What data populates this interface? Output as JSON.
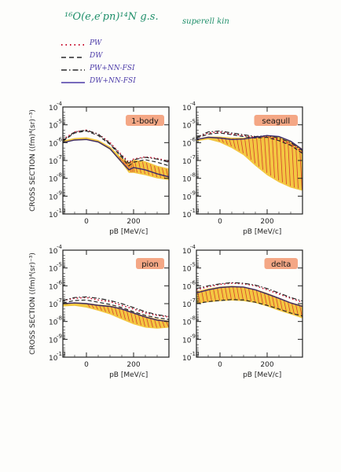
{
  "header": {
    "title_html": "¹⁶O(e,e′pn)¹⁴N g.s.",
    "note": "superell kin"
  },
  "legend": [
    {
      "label": "PW",
      "style": "dotted",
      "color": "#c8102e"
    },
    {
      "label": "DW",
      "style": "dashed",
      "color": "#2a2a2a"
    },
    {
      "label": "PW+NN-FSI",
      "style": "dashdot",
      "color": "#2a2a2a"
    },
    {
      "label": "DW+NN-FSI",
      "style": "solid",
      "color": "#4b3aa8"
    }
  ],
  "colors": {
    "band": "#f2c12e",
    "hatch": "#d6402b",
    "frame": "#222222",
    "label_bg": "#f08a5d"
  },
  "chart_data": [
    {
      "type": "line",
      "panel": "1-body",
      "xlabel": "pB [MeV/c]",
      "ylabel": "CROSS SECTION ((fm)⁴(sr)⁻³)",
      "xlim": [
        -100,
        350
      ],
      "xticks": [
        0,
        200
      ],
      "ylim_log10": [
        -10,
        -4
      ],
      "yscale": "log",
      "yticklabels": [
        "10",
        "10",
        "10",
        "10",
        "10",
        "10",
        "10"
      ],
      "ytickexps": [
        "-4",
        "-5",
        "-6",
        "-7",
        "-8",
        "-9",
        "-10"
      ],
      "x": [
        -100,
        -50,
        0,
        50,
        100,
        150,
        180,
        200,
        250,
        300,
        350
      ],
      "series": [
        {
          "name": "PW",
          "values": [
            1.5e-06,
            4e-06,
            5e-06,
            3e-06,
            1e-06,
            2e-07,
            8e-08,
            1.2e-07,
            1.6e-07,
            1.3e-07,
            9e-08
          ]
        },
        {
          "name": "DW",
          "values": [
            1.2e-06,
            3.5e-06,
            4.5e-06,
            2.5e-06,
            8e-07,
            1.5e-07,
            5e-08,
            8e-08,
            1.1e-07,
            8e-08,
            5e-08
          ]
        },
        {
          "name": "PW+NN-FSI",
          "values": [
            1.3e-06,
            4e-06,
            5e-06,
            3e-06,
            9e-07,
            1.8e-07,
            7e-08,
            1.1e-07,
            1.5e-07,
            1.2e-07,
            8e-08
          ]
        },
        {
          "name": "DW+NN-FSI",
          "values": [
            1e-06,
            1.4e-06,
            1.5e-06,
            1.1e-06,
            4.5e-07,
            8e-08,
            3e-08,
            4e-08,
            3e-08,
            1.8e-08,
            1.2e-08
          ]
        }
      ],
      "band_upper": [
        1.3e-06,
        1.8e-06,
        2e-06,
        1.4e-06,
        6e-07,
        1.4e-07,
        8e-08,
        1.1e-07,
        9e-08,
        5e-08,
        3.5e-08
      ],
      "band_lower": [
        1e-06,
        1.3e-06,
        1.4e-06,
        1e-06,
        4e-07,
        7e-08,
        2e-08,
        2e-08,
        1.5e-08,
        1e-08,
        8e-09
      ]
    },
    {
      "type": "line",
      "panel": "seagull",
      "xlabel": "pB [MeV/c]",
      "ylabel": "",
      "xlim": [
        -100,
        350
      ],
      "xticks": [
        0,
        200
      ],
      "ylim_log10": [
        -10,
        -4
      ],
      "yscale": "log",
      "yticklabels": [
        "10",
        "10",
        "10",
        "10",
        "10",
        "10",
        "10"
      ],
      "ytickexps": [
        "-4",
        "-5",
        "-6",
        "-7",
        "-8",
        "-9",
        "-10"
      ],
      "x": [
        -100,
        -50,
        0,
        50,
        100,
        150,
        200,
        250,
        300,
        350
      ],
      "series": [
        {
          "name": "PW",
          "values": [
            2e-06,
            3.5e-06,
            4e-06,
            3e-06,
            2.5e-06,
            2e-06,
            2.2e-06,
            1.5e-06,
            8e-07,
            3e-07
          ]
        },
        {
          "name": "DW",
          "values": [
            1.8e-06,
            3e-06,
            3.5e-06,
            2.8e-06,
            2.2e-06,
            1.8e-06,
            2e-06,
            1.3e-06,
            7e-07,
            2.5e-07
          ]
        },
        {
          "name": "PW+NN-FSI",
          "values": [
            2e-06,
            4e-06,
            4.5e-06,
            3.5e-06,
            2.8e-06,
            2.2e-06,
            2.5e-06,
            1.8e-06,
            1e-06,
            3.5e-07
          ]
        },
        {
          "name": "DW+NN-FSI",
          "values": [
            1.5e-06,
            2e-06,
            1.8e-06,
            1.5e-06,
            1.6e-06,
            2e-06,
            2.5e-06,
            2.2e-06,
            1.2e-06,
            4e-07
          ]
        }
      ],
      "band_upper": [
        1.6e-06,
        2.2e-06,
        2.2e-06,
        1.9e-06,
        1.9e-06,
        2.2e-06,
        2.6e-06,
        2.2e-06,
        1.3e-06,
        4.5e-07
      ],
      "band_lower": [
        1.2e-06,
        1.5e-06,
        1e-06,
        5e-07,
        2e-07,
        5e-08,
        1.5e-08,
        6e-09,
        3e-09,
        2e-09
      ]
    },
    {
      "type": "line",
      "panel": "pion",
      "xlabel": "pB [MeV/c]",
      "ylabel": "CROSS SECTION ((fm)⁴(sr)⁻³)",
      "xlim": [
        -100,
        350
      ],
      "xticks": [
        0,
        200
      ],
      "ylim_log10": [
        -10,
        -4
      ],
      "yscale": "log",
      "yticklabels": [
        "10",
        "10",
        "10",
        "10",
        "10",
        "10",
        "10"
      ],
      "ytickexps": [
        "-4",
        "-5",
        "-6",
        "-7",
        "-8",
        "-9",
        "-10"
      ],
      "x": [
        -100,
        -50,
        0,
        50,
        100,
        150,
        200,
        250,
        300,
        350
      ],
      "series": [
        {
          "name": "PW",
          "values": [
            1.5e-07,
            2e-07,
            2.2e-07,
            1.6e-07,
            1.3e-07,
            8e-08,
            5e-08,
            3e-08,
            2.2e-08,
            1.8e-08
          ]
        },
        {
          "name": "DW",
          "values": [
            1.1e-07,
            1.5e-07,
            1.6e-07,
            1.2e-07,
            9e-08,
            6e-08,
            3.5e-08,
            2.2e-08,
            1.6e-08,
            1.3e-08
          ]
        },
        {
          "name": "PW+NN-FSI",
          "values": [
            1.5e-07,
            2.2e-07,
            2.4e-07,
            2e-07,
            1.5e-07,
            1e-07,
            6e-08,
            3.5e-08,
            2.4e-08,
            1.9e-08
          ]
        },
        {
          "name": "DW+NN-FSI",
          "values": [
            1e-07,
            1.1e-07,
            1e-07,
            8e-08,
            7e-08,
            5e-08,
            3e-08,
            1.8e-08,
            1.2e-08,
            1e-08
          ]
        }
      ],
      "band_upper": [
        1e-07,
        1.2e-07,
        1.1e-07,
        9e-08,
        8e-08,
        5.5e-08,
        3.3e-08,
        2e-08,
        1.4e-08,
        1.1e-08
      ],
      "band_lower": [
        7e-08,
        7.5e-08,
        6e-08,
        4e-08,
        2.5e-08,
        1.3e-08,
        7e-09,
        4.5e-09,
        4e-09,
        4.5e-09
      ]
    },
    {
      "type": "line",
      "panel": "delta",
      "xlabel": "pB [MeV/c]",
      "ylabel": "",
      "xlim": [
        -100,
        350
      ],
      "xticks": [
        0,
        200
      ],
      "ylim_log10": [
        -10,
        -4
      ],
      "yscale": "log",
      "yticklabels": [
        "10",
        "10",
        "10",
        "10",
        "10",
        "10",
        "10"
      ],
      "ytickexps": [
        "-4",
        "-5",
        "-6",
        "-7",
        "-8",
        "-9",
        "-10"
      ],
      "x": [
        -100,
        -50,
        0,
        50,
        100,
        150,
        200,
        250,
        300,
        350
      ],
      "series": [
        {
          "name": "PW",
          "values": [
            6e-07,
            9e-07,
            1.2e-06,
            1.4e-06,
            1.3e-06,
            1e-06,
            6e-07,
            3.5e-07,
            2e-07,
            1.2e-07
          ]
        },
        {
          "name": "DW",
          "values": [
            1e-07,
            1.3e-07,
            1.5e-07,
            1.7e-07,
            1.6e-07,
            1.2e-07,
            8e-08,
            5e-08,
            3e-08,
            2e-08
          ]
        },
        {
          "name": "PW+NN-FSI",
          "values": [
            7e-07,
            1e-06,
            1.3e-06,
            1.5e-06,
            1.4e-06,
            1.1e-06,
            7e-07,
            4e-07,
            2.2e-07,
            1.4e-07
          ]
        },
        {
          "name": "DW+NN-FSI",
          "values": [
            4e-07,
            6e-07,
            8e-07,
            9e-07,
            8.5e-07,
            6e-07,
            3.5e-07,
            2e-07,
            1.1e-07,
            7e-08
          ]
        }
      ],
      "band_upper": [
        5e-07,
        7e-07,
        9e-07,
        1e-06,
        9e-07,
        6.5e-07,
        4e-07,
        2.2e-07,
        1.2e-07,
        8e-08
      ],
      "band_lower": [
        1e-07,
        1.2e-07,
        1.4e-07,
        1.5e-07,
        1.4e-07,
        1.1e-07,
        7e-08,
        4e-08,
        2.5e-08,
        1.5e-08
      ]
    }
  ]
}
